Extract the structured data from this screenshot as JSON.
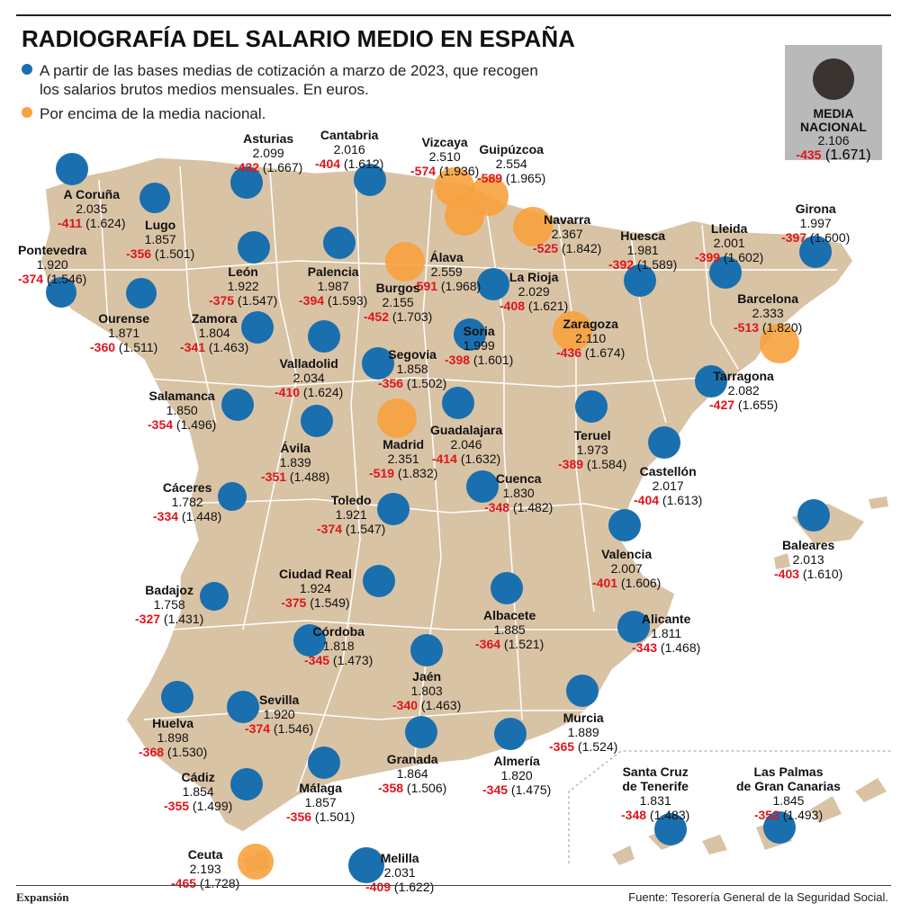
{
  "title": "RADIOGRAFÍA DEL SALARIO MEDIO EN ESPAÑA",
  "legend": {
    "blue_text": "A partir de las bases medias de cotización a marzo de 2023, que recogen los salarios brutos medios mensuales. En euros.",
    "orange_text": "Por encima de la media nacional."
  },
  "media_nacional": {
    "name": "MEDIA NACIONAL",
    "value": "2.106",
    "diff": "-435",
    "net": "(1.671)"
  },
  "colors": {
    "below": "#1a6fae",
    "above": "#f7a23d",
    "land": "#d9c3a5",
    "media": "#3a3330",
    "diff": "#e0141b"
  },
  "provinces": [
    {
      "id": "a-coruna",
      "name": "A Coruña",
      "value": "2.035",
      "diff": "-411",
      "net": "(1.624)",
      "above": false
    },
    {
      "id": "lugo",
      "name": "Lugo",
      "value": "1.857",
      "diff": "-356",
      "net": "(1.501)",
      "above": false
    },
    {
      "id": "asturias",
      "name": "Asturias",
      "value": "2.099",
      "diff": "-432",
      "net": "(1.667)",
      "above": false
    },
    {
      "id": "cantabria",
      "name": "Cantabria",
      "value": "2.016",
      "diff": "-404",
      "net": "(1.612)",
      "above": false
    },
    {
      "id": "vizcaya",
      "name": "Vizcaya",
      "value": "2.510",
      "diff": "-574",
      "net": "(1.936)",
      "above": true
    },
    {
      "id": "guipuzcoa",
      "name": "Guipúzcoa",
      "value": "2.554",
      "diff": "-589",
      "net": "(1.965)",
      "above": true
    },
    {
      "id": "pontevedra",
      "name": "Pontevedra",
      "value": "1.920",
      "diff": "-374",
      "net": "(1.546)",
      "above": false
    },
    {
      "id": "ourense",
      "name": "Ourense",
      "value": "1.871",
      "diff": "-360",
      "net": "(1.511)",
      "above": false
    },
    {
      "id": "leon",
      "name": "León",
      "value": "1.922",
      "diff": "-375",
      "net": "(1.547)",
      "above": false
    },
    {
      "id": "palencia",
      "name": "Palencia",
      "value": "1.987",
      "diff": "-394",
      "net": "(1.593)",
      "above": false
    },
    {
      "id": "alava",
      "name": "Álava",
      "value": "2.559",
      "diff": "-591",
      "net": "(1.968)",
      "above": true
    },
    {
      "id": "navarra",
      "name": "Navarra",
      "value": "2.367",
      "diff": "-525",
      "net": "(1.842)",
      "above": true
    },
    {
      "id": "huesca",
      "name": "Huesca",
      "value": "1.981",
      "diff": "-392",
      "net": "(1.589)",
      "above": false
    },
    {
      "id": "lleida",
      "name": "Lleida",
      "value": "2.001",
      "diff": "-399",
      "net": "(1.602)",
      "above": false
    },
    {
      "id": "girona",
      "name": "Girona",
      "value": "1.997",
      "diff": "-397",
      "net": "(1.600)",
      "above": false
    },
    {
      "id": "burgos",
      "name": "Burgos",
      "value": "2.155",
      "diff": "-452",
      "net": "(1.703)",
      "above": true
    },
    {
      "id": "la-rioja",
      "name": "La Rioja",
      "value": "2.029",
      "diff": "-408",
      "net": "(1.621)",
      "above": false
    },
    {
      "id": "zamora",
      "name": "Zamora",
      "value": "1.804",
      "diff": "-341",
      "net": "(1.463)",
      "above": false
    },
    {
      "id": "valladolid",
      "name": "Valladolid",
      "value": "2.034",
      "diff": "-410",
      "net": "(1.624)",
      "above": false
    },
    {
      "id": "soria",
      "name": "Soria",
      "value": "1.999",
      "diff": "-398",
      "net": "(1.601)",
      "above": false
    },
    {
      "id": "zaragoza",
      "name": "Zaragoza",
      "value": "2.110",
      "diff": "-436",
      "net": "(1.674)",
      "above": true
    },
    {
      "id": "barcelona",
      "name": "Barcelona",
      "value": "2.333",
      "diff": "-513",
      "net": "(1.820)",
      "above": true
    },
    {
      "id": "segovia",
      "name": "Segovia",
      "value": "1.858",
      "diff": "-356",
      "net": "(1.502)",
      "above": false
    },
    {
      "id": "salamanca",
      "name": "Salamanca",
      "value": "1.850",
      "diff": "-354",
      "net": "(1.496)",
      "above": false
    },
    {
      "id": "tarragona",
      "name": "Tarragona",
      "value": "2.082",
      "diff": "-427",
      "net": "(1.655)",
      "above": false
    },
    {
      "id": "avila",
      "name": "Ávila",
      "value": "1.839",
      "diff": "-351",
      "net": "(1.488)",
      "above": false
    },
    {
      "id": "madrid",
      "name": "Madrid",
      "value": "2.351",
      "diff": "-519",
      "net": "(1.832)",
      "above": true
    },
    {
      "id": "guadalajara",
      "name": "Guadalajara",
      "value": "2.046",
      "diff": "-414",
      "net": "(1.632)",
      "above": false
    },
    {
      "id": "teruel",
      "name": "Teruel",
      "value": "1.973",
      "diff": "-389",
      "net": "(1.584)",
      "above": false
    },
    {
      "id": "castellon",
      "name": "Castellón",
      "value": "2.017",
      "diff": "-404",
      "net": "(1.613)",
      "above": false
    },
    {
      "id": "caceres",
      "name": "Cáceres",
      "value": "1.782",
      "diff": "-334",
      "net": "(1.448)",
      "above": false
    },
    {
      "id": "toledo",
      "name": "Toledo",
      "value": "1.921",
      "diff": "-374",
      "net": "(1.547)",
      "above": false
    },
    {
      "id": "cuenca",
      "name": "Cuenca",
      "value": "1.830",
      "diff": "-348",
      "net": "(1.482)",
      "above": false
    },
    {
      "id": "valencia",
      "name": "Valencia",
      "value": "2.007",
      "diff": "-401",
      "net": "(1.606)",
      "above": false
    },
    {
      "id": "baleares",
      "name": "Baleares",
      "value": "2.013",
      "diff": "-403",
      "net": "(1.610)",
      "above": false
    },
    {
      "id": "ciudad-real",
      "name": "Ciudad Real",
      "value": "1.924",
      "diff": "-375",
      "net": "(1.549)",
      "above": false
    },
    {
      "id": "badajoz",
      "name": "Badajoz",
      "value": "1.758",
      "diff": "-327",
      "net": "(1.431)",
      "above": false
    },
    {
      "id": "albacete",
      "name": "Albacete",
      "value": "1.885",
      "diff": "-364",
      "net": "(1.521)",
      "above": false
    },
    {
      "id": "alicante",
      "name": "Alicante",
      "value": "1.811",
      "diff": "-343",
      "net": "(1.468)",
      "above": false
    },
    {
      "id": "cordoba",
      "name": "Córdoba",
      "value": "1.818",
      "diff": "-345",
      "net": "(1.473)",
      "above": false
    },
    {
      "id": "jaen",
      "name": "Jaén",
      "value": "1.803",
      "diff": "-340",
      "net": "(1.463)",
      "above": false
    },
    {
      "id": "huelva",
      "name": "Huelva",
      "value": "1.898",
      "diff": "-368",
      "net": "(1.530)",
      "above": false
    },
    {
      "id": "sevilla",
      "name": "Sevilla",
      "value": "1.920",
      "diff": "-374",
      "net": "(1.546)",
      "above": false
    },
    {
      "id": "murcia",
      "name": "Murcia",
      "value": "1.889",
      "diff": "-365",
      "net": "(1.524)",
      "above": false
    },
    {
      "id": "granada",
      "name": "Granada",
      "value": "1.864",
      "diff": "-358",
      "net": "(1.506)",
      "above": false
    },
    {
      "id": "almeria",
      "name": "Almería",
      "value": "1.820",
      "diff": "-345",
      "net": "(1.475)",
      "above": false
    },
    {
      "id": "cadiz",
      "name": "Cádiz",
      "value": "1.854",
      "diff": "-355",
      "net": "(1.499)",
      "above": false
    },
    {
      "id": "malaga",
      "name": "Málaga",
      "value": "1.857",
      "diff": "-356",
      "net": "(1.501)",
      "above": false
    },
    {
      "id": "santa-cruz",
      "name": "Santa Cruz de Tenerife",
      "value": "1.831",
      "diff": "-348",
      "net": "(1.483)",
      "above": false
    },
    {
      "id": "las-palmas",
      "name": "Las Palmas de Gran Canarias",
      "value": "1.845",
      "diff": "-352",
      "net": "(1.493)",
      "above": false
    },
    {
      "id": "ceuta",
      "name": "Ceuta",
      "value": "2.193",
      "diff": "-465",
      "net": "(1.728)",
      "above": true
    },
    {
      "id": "melilla",
      "name": "Melilla",
      "value": "2.031",
      "diff": "-409",
      "net": "(1.622)",
      "above": false
    }
  ],
  "source": "Fuente: Tesorería General de la Seguridad Social.",
  "brand": "Expansión"
}
